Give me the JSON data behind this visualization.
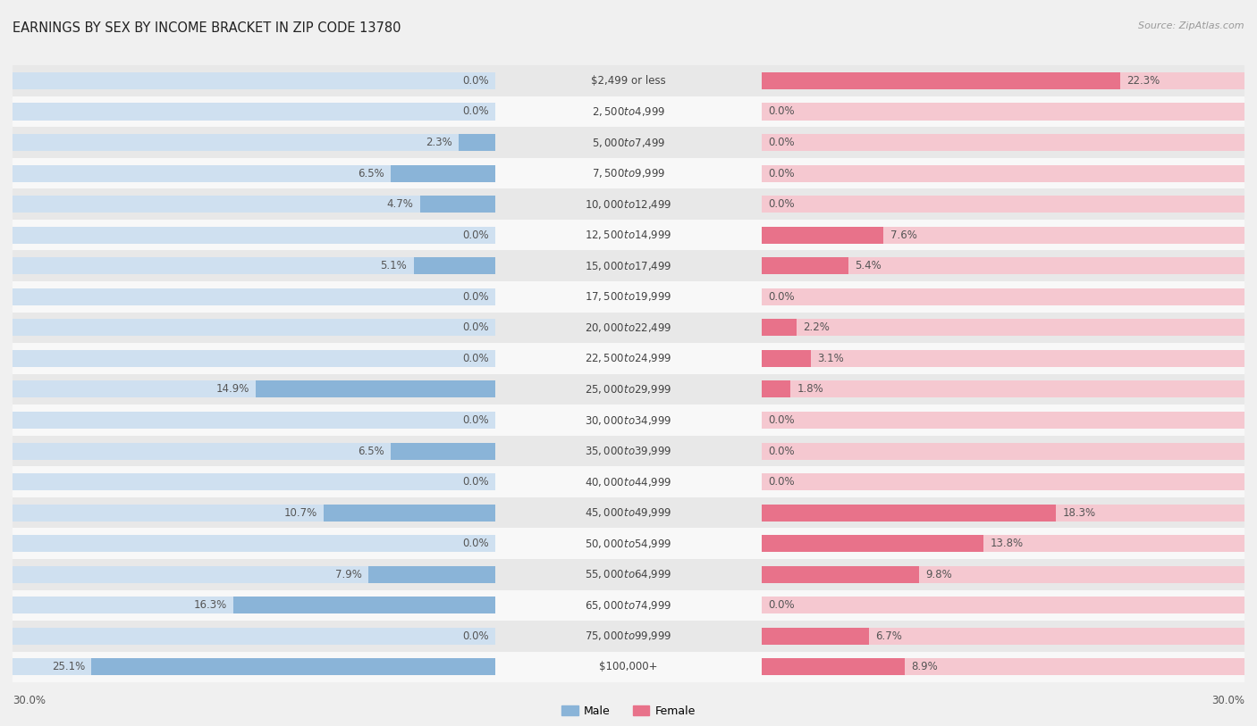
{
  "title": "EARNINGS BY SEX BY INCOME BRACKET IN ZIP CODE 13780",
  "source": "Source: ZipAtlas.com",
  "categories": [
    "$2,499 or less",
    "$2,500 to $4,999",
    "$5,000 to $7,499",
    "$7,500 to $9,999",
    "$10,000 to $12,499",
    "$12,500 to $14,999",
    "$15,000 to $17,499",
    "$17,500 to $19,999",
    "$20,000 to $22,499",
    "$22,500 to $24,999",
    "$25,000 to $29,999",
    "$30,000 to $34,999",
    "$35,000 to $39,999",
    "$40,000 to $44,999",
    "$45,000 to $49,999",
    "$50,000 to $54,999",
    "$55,000 to $64,999",
    "$65,000 to $74,999",
    "$75,000 to $99,999",
    "$100,000+"
  ],
  "male_values": [
    0.0,
    0.0,
    2.3,
    6.5,
    4.7,
    0.0,
    5.1,
    0.0,
    0.0,
    0.0,
    14.9,
    0.0,
    6.5,
    0.0,
    10.7,
    0.0,
    7.9,
    16.3,
    0.0,
    25.1
  ],
  "female_values": [
    22.3,
    0.0,
    0.0,
    0.0,
    0.0,
    7.6,
    5.4,
    0.0,
    2.2,
    3.1,
    1.8,
    0.0,
    0.0,
    0.0,
    18.3,
    13.8,
    9.8,
    0.0,
    6.7,
    8.9
  ],
  "male_color": "#8ab4d8",
  "female_color": "#e8728a",
  "bar_bg_male": "#cfe0f0",
  "bar_bg_female": "#f5c8d0",
  "axis_limit": 30.0,
  "bg_color": "#f0f0f0",
  "row_even_color": "#e8e8e8",
  "row_odd_color": "#f8f8f8",
  "label_fontsize": 8.5,
  "title_fontsize": 10.5,
  "source_fontsize": 8,
  "value_fontsize": 8.5,
  "cat_fontsize": 8.5
}
